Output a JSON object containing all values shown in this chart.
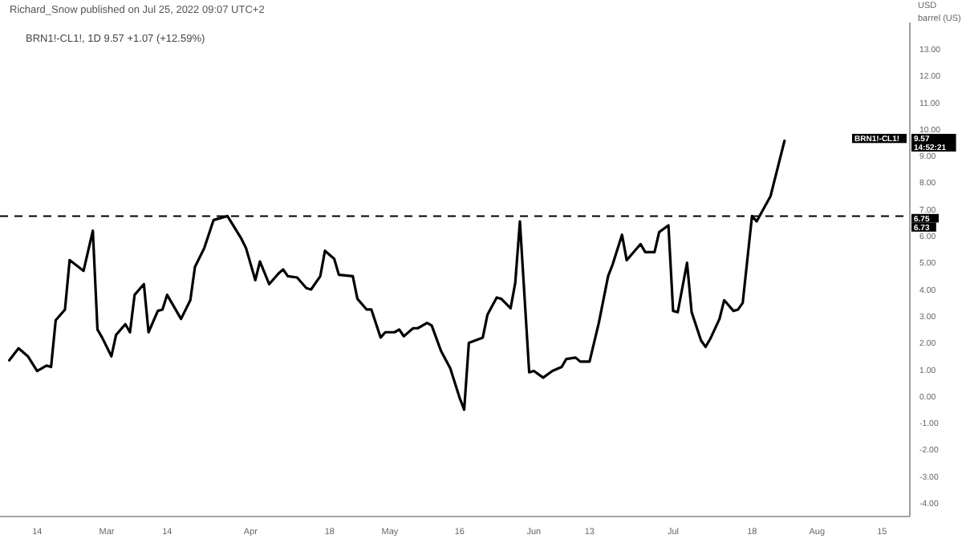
{
  "chart_data": {
    "type": "line",
    "title": "Richard_Snow published on Jul 25, 2022 09:07 UTC+2",
    "subtitle": "BRN1!-CL1!, 1D  9.57  +1.07 (+12.59%)",
    "ylabel": "USD\nbarrel (US)",
    "x": [
      "2022-02-08",
      "2022-02-10",
      "2022-02-12",
      "2022-02-14",
      "2022-02-16",
      "2022-02-17",
      "2022-02-18",
      "2022-02-20",
      "2022-02-21",
      "2022-02-24",
      "2022-02-26",
      "2022-02-27",
      "2022-02-28",
      "2022-03-02",
      "2022-03-03",
      "2022-03-05",
      "2022-03-06",
      "2022-03-07",
      "2022-03-09",
      "2022-03-10",
      "2022-03-12",
      "2022-03-13",
      "2022-03-14",
      "2022-03-17",
      "2022-03-19",
      "2022-03-20",
      "2022-03-22",
      "2022-03-24",
      "2022-03-27",
      "2022-03-30",
      "2022-03-31",
      "2022-04-02",
      "2022-04-03",
      "2022-04-05",
      "2022-04-07",
      "2022-04-08",
      "2022-04-09",
      "2022-04-11",
      "2022-04-13",
      "2022-04-14",
      "2022-04-16",
      "2022-04-17",
      "2022-04-19",
      "2022-04-20",
      "2022-04-23",
      "2022-04-24",
      "2022-04-26",
      "2022-04-27",
      "2022-04-29",
      "2022-04-30",
      "2022-05-02",
      "2022-05-03",
      "2022-05-04",
      "2022-05-06",
      "2022-05-07",
      "2022-05-09",
      "2022-05-10",
      "2022-05-12",
      "2022-05-14",
      "2022-05-16",
      "2022-05-17",
      "2022-05-18",
      "2022-05-21",
      "2022-05-22",
      "2022-05-24",
      "2022-05-25",
      "2022-05-27",
      "2022-05-28",
      "2022-05-29",
      "2022-05-31",
      "2022-06-01",
      "2022-06-03",
      "2022-06-05",
      "2022-06-07",
      "2022-06-08",
      "2022-06-10",
      "2022-06-11",
      "2022-06-13",
      "2022-06-15",
      "2022-06-17",
      "2022-06-18",
      "2022-06-20",
      "2022-06-21",
      "2022-06-23",
      "2022-06-24",
      "2022-06-25",
      "2022-06-27",
      "2022-06-28",
      "2022-06-30",
      "2022-07-01",
      "2022-07-02",
      "2022-07-04",
      "2022-07-05",
      "2022-07-07",
      "2022-07-08",
      "2022-07-09",
      "2022-07-11",
      "2022-07-12",
      "2022-07-14",
      "2022-07-15",
      "2022-07-16",
      "2022-07-18",
      "2022-07-19",
      "2022-07-22",
      "2022-07-25"
    ],
    "series": [
      {
        "color": "#000000",
        "values": [
          1.35,
          1.8,
          1.5,
          0.95,
          1.15,
          1.1,
          2.85,
          3.25,
          5.1,
          4.7,
          6.2,
          2.5,
          2.2,
          1.5,
          2.3,
          2.7,
          2.4,
          3.8,
          4.2,
          2.4,
          3.2,
          3.25,
          3.8,
          2.9,
          3.6,
          4.85,
          5.55,
          6.6,
          6.75,
          5.9,
          5.55,
          4.35,
          5.05,
          4.2,
          4.6,
          4.75,
          4.5,
          4.45,
          4.05,
          4.0,
          4.5,
          5.45,
          5.15,
          4.55,
          4.5,
          3.65,
          3.25,
          3.25,
          2.2,
          2.4,
          2.4,
          2.5,
          2.25,
          2.55,
          2.55,
          2.75,
          2.65,
          1.7,
          1.05,
          -0.05,
          -0.5,
          2.0,
          2.2,
          3.05,
          3.7,
          3.65,
          3.3,
          4.25,
          6.55,
          0.9,
          0.95,
          0.7,
          0.95,
          1.1,
          1.4,
          1.45,
          1.3,
          1.3,
          2.75,
          4.5,
          4.95,
          6.05,
          5.1,
          5.5,
          5.7,
          5.4,
          5.4,
          6.15,
          6.4,
          3.2,
          3.15,
          5.0,
          3.15,
          2.1,
          1.85,
          2.15,
          2.9,
          3.6,
          3.2,
          3.25,
          3.5,
          6.75,
          6.55,
          7.5,
          9.57
        ]
      }
    ],
    "xlim": [
      "2022-02-06",
      "2022-08-21"
    ],
    "xticks": [
      {
        "value": "2022-02-14",
        "label": "14"
      },
      {
        "value": "2022-03-01",
        "label": "Mar"
      },
      {
        "value": "2022-03-14",
        "label": "14"
      },
      {
        "value": "2022-04-01",
        "label": "Apr"
      },
      {
        "value": "2022-04-18",
        "label": "18"
      },
      {
        "value": "2022-05-01",
        "label": "May"
      },
      {
        "value": "2022-05-16",
        "label": "16"
      },
      {
        "value": "2022-06-01",
        "label": "Jun"
      },
      {
        "value": "2022-06-13",
        "label": "13"
      },
      {
        "value": "2022-07-01",
        "label": "Jul"
      },
      {
        "value": "2022-07-18",
        "label": "18"
      },
      {
        "value": "2022-08-01",
        "label": "Aug"
      },
      {
        "value": "2022-08-15",
        "label": "15"
      }
    ],
    "ylim": [
      -4.5,
      14
    ],
    "yticks": [
      {
        "value": -4,
        "label": "-4.00"
      },
      {
        "value": -3,
        "label": "-3.00"
      },
      {
        "value": -2,
        "label": "-2.00"
      },
      {
        "value": -1,
        "label": "-1.00"
      },
      {
        "value": 0,
        "label": "0.00"
      },
      {
        "value": 1,
        "label": "1.00"
      },
      {
        "value": 2,
        "label": "2.00"
      },
      {
        "value": 3,
        "label": "3.00"
      },
      {
        "value": 4,
        "label": "4.00"
      },
      {
        "value": 5,
        "label": "5.00"
      },
      {
        "value": 6,
        "label": "6.00"
      },
      {
        "value": 7,
        "label": "7.00"
      },
      {
        "value": 8,
        "label": "8.00"
      },
      {
        "value": 9,
        "label": "9.00"
      },
      {
        "value": 10,
        "label": "10.00"
      },
      {
        "value": 11,
        "label": "11.00"
      },
      {
        "value": 12,
        "label": "12.00"
      },
      {
        "value": 13,
        "label": "13.00"
      }
    ],
    "ref_lines": [
      {
        "axis": "y",
        "value": 6.75,
        "label": "6.75",
        "color": "#000000",
        "line_style": "dashed"
      }
    ],
    "annotations": [
      "BRN1!-CL1!",
      "9.57\n14:52:21",
      "6.73"
    ],
    "grid": false,
    "marker": "none",
    "line_style": "solid"
  }
}
